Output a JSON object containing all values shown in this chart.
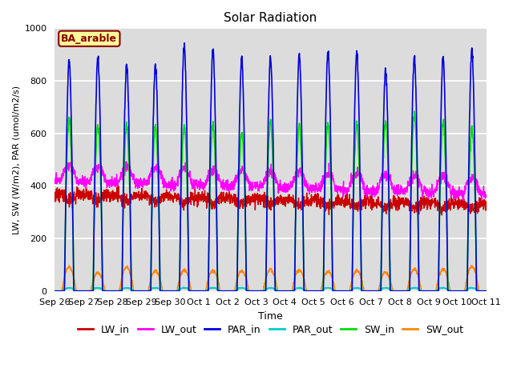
{
  "title": "Solar Radiation",
  "xlabel": "Time",
  "ylabel": "LW, SW (W/m2), PAR (umol/m2/s)",
  "ylim": [
    0,
    1000
  ],
  "annotation_text": "BA_arable",
  "annotation_color": "#8B0000",
  "annotation_bg": "#FFFF99",
  "bg_color": "#DCDCDC",
  "grid_color": "white",
  "series": {
    "LW_in": {
      "color": "#CC0000",
      "lw": 1.0
    },
    "LW_out": {
      "color": "#FF00FF",
      "lw": 1.0
    },
    "PAR_in": {
      "color": "#0000DD",
      "lw": 1.2
    },
    "PAR_out": {
      "color": "#00CCCC",
      "lw": 1.0
    },
    "SW_in": {
      "color": "#00DD00",
      "lw": 1.2
    },
    "SW_out": {
      "color": "#FF8800",
      "lw": 1.0
    }
  },
  "xtick_labels": [
    "Sep 26",
    "Sep 27",
    "Sep 28",
    "Sep 29",
    "Sep 30",
    "Oct 1",
    "Oct 2",
    "Oct 3",
    "Oct 4",
    "Oct 5",
    "Oct 6",
    "Oct 7",
    "Oct 8",
    "Oct 9",
    "Oct 10",
    "Oct 11"
  ],
  "n_days": 15,
  "pts_per_day": 144
}
